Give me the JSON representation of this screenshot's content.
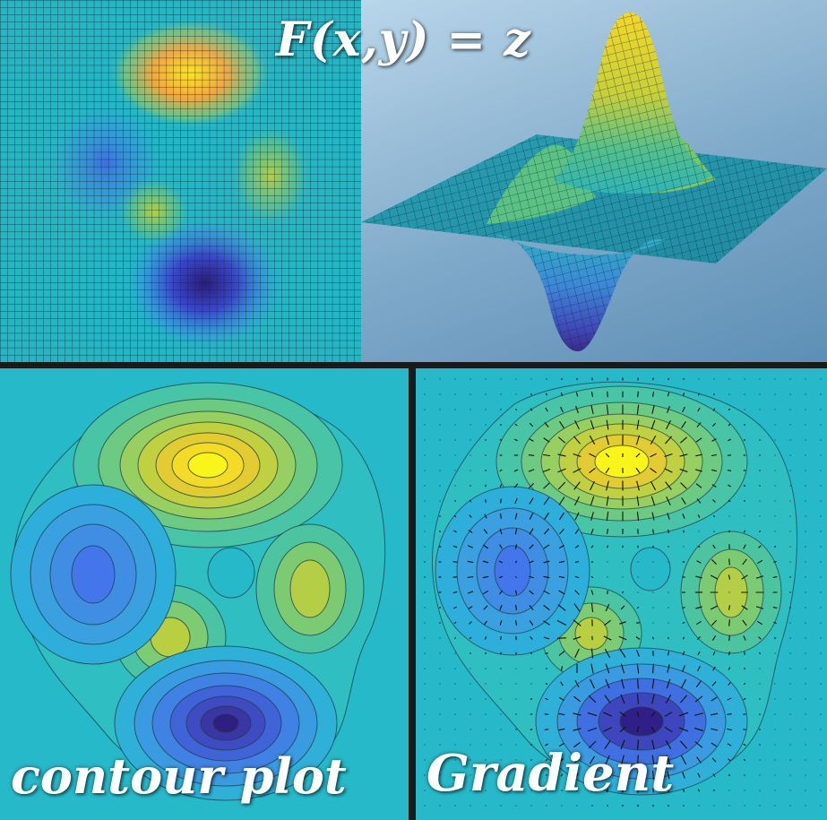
{
  "title_equation": "F(x,y) = z",
  "labels": {
    "contour": "contour plot",
    "gradient": "Gradient"
  },
  "colors": {
    "background_teal": "#26b9c9",
    "peak_yellow": "#f7f31a",
    "peak_orange": "#f2b43c",
    "mid_green": "#9cd34a",
    "low_blue": "#3f7ce8",
    "trough_indigo": "#3a2a8e",
    "divider": "#1a1a1a"
  },
  "panels": [
    "heatmap-grid",
    "surface-3d",
    "contour-plot",
    "gradient-field"
  ],
  "function_features": [
    {
      "kind": "peak",
      "description": "tall maximum top-center"
    },
    {
      "kind": "trough",
      "description": "deep minimum bottom-center"
    },
    {
      "kind": "peak",
      "description": "small maximum right"
    },
    {
      "kind": "peak",
      "description": "small maximum lower-left"
    },
    {
      "kind": "trough",
      "description": "shallow minimum left"
    }
  ]
}
